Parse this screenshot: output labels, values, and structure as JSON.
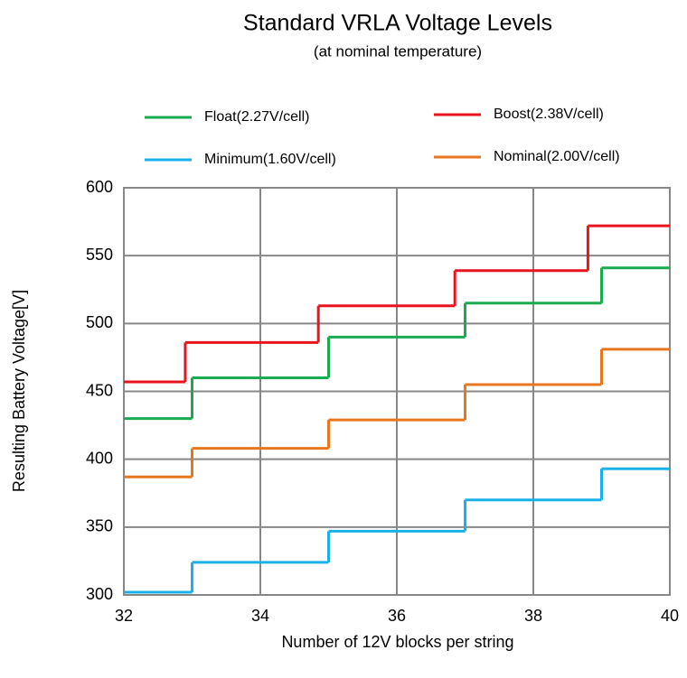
{
  "chart_data": {
    "type": "step",
    "title": "Standard VRLA Voltage Levels",
    "subtitle": "(at nominal temperature)",
    "xlabel": "Number of 12V blocks per string",
    "ylabel": "Resulting Battery Voltage[V]",
    "xlim": [
      32,
      40
    ],
    "xticks": [
      32,
      34,
      36,
      38,
      40
    ],
    "ylim": [
      300,
      600
    ],
    "yticks": [
      300,
      350,
      400,
      450,
      500,
      550,
      600
    ],
    "grid": true,
    "series": [
      {
        "name": "Float(2.27V/cell)",
        "color": "#1aaa50",
        "x": [
          32,
          33,
          35,
          37,
          39
        ],
        "values": [
          430,
          460,
          490,
          515,
          541
        ]
      },
      {
        "name": "Boost(2.38V/cell)",
        "color": "#e8141e",
        "x": [
          32,
          32.9,
          34.85,
          36.85,
          38.8
        ],
        "values": [
          457,
          486,
          513,
          539,
          572
        ]
      },
      {
        "name": "Minimum(1.60V/cell)",
        "color": "#1ab0e8",
        "x": [
          32,
          33,
          35,
          37,
          39
        ],
        "values": [
          302,
          324,
          347,
          370,
          393
        ]
      },
      {
        "name": "Nominal(2.00V/cell)",
        "color": "#e8761e",
        "x": [
          32,
          33,
          35,
          37,
          39
        ],
        "values": [
          387,
          408,
          429,
          455,
          481
        ]
      }
    ]
  }
}
